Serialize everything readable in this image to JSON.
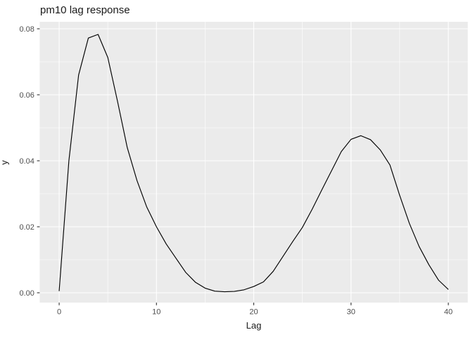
{
  "chart_data": {
    "type": "line",
    "title": "pm10 lag response",
    "xlabel": "Lag",
    "ylabel": "y",
    "x": [
      0,
      1,
      2,
      3,
      4,
      5,
      6,
      7,
      8,
      9,
      10,
      11,
      12,
      13,
      14,
      15,
      16,
      17,
      18,
      19,
      20,
      21,
      22,
      23,
      24,
      25,
      26,
      27,
      28,
      29,
      30,
      31,
      32,
      33,
      34,
      35,
      36,
      37,
      38,
      39,
      40
    ],
    "y": [
      0.0005,
      0.04,
      0.066,
      0.0772,
      0.0783,
      0.0713,
      0.058,
      0.044,
      0.034,
      0.026,
      0.02,
      0.0148,
      0.0105,
      0.0062,
      0.0032,
      0.0014,
      0.0005,
      0.0003,
      0.0004,
      0.0009,
      0.0019,
      0.0033,
      0.0065,
      0.011,
      0.0155,
      0.0198,
      0.0253,
      0.0312,
      0.037,
      0.0428,
      0.0465,
      0.0476,
      0.0464,
      0.0433,
      0.0387,
      0.0295,
      0.021,
      0.014,
      0.0085,
      0.0038,
      0.001
    ],
    "xlim": [
      -2,
      42
    ],
    "ylim": [
      -0.00298,
      0.08213
    ],
    "xticks": {
      "values": [
        0,
        10,
        20,
        30,
        40
      ],
      "labels": [
        "0",
        "10",
        "20",
        "30",
        "40"
      ]
    },
    "yticks": {
      "values": [
        0,
        0.02,
        0.04,
        0.06,
        0.08
      ],
      "labels": [
        "0.00",
        "0.02",
        "0.04",
        "0.06",
        "0.08"
      ]
    },
    "x_minor": [
      5,
      15,
      25,
      35
    ],
    "y_minor": [
      0.01,
      0.03,
      0.05,
      0.07
    ],
    "grid": "on",
    "legend": "none",
    "colors": {
      "panel_background": "#EBEBEB",
      "gridline": "#FFFFFF",
      "line": "#000000",
      "tick_mark": "#333333",
      "tick_label": "#4D4D4D",
      "title_text": "#1A1A1A"
    }
  }
}
